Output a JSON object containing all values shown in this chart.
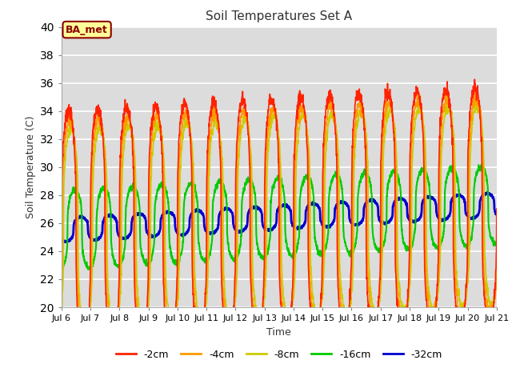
{
  "title": "Soil Temperatures Set A",
  "xlabel": "Time",
  "ylabel": "Soil Temperature (C)",
  "ylim": [
    20,
    40
  ],
  "x_tick_labels": [
    "Jul 6",
    "Jul 7",
    "Jul 8",
    "Jul 9",
    "Jul 10",
    "Jul 11",
    "Jul 12",
    "Jul 13",
    "Jul 14",
    "Jul 15",
    "Jul 16",
    "Jul 17",
    "Jul 18",
    "Jul 19",
    "Jul 20",
    "Jul 21"
  ],
  "annotation_text": "BA_met",
  "annotation_color": "#8B0000",
  "annotation_bg": "#FFFF99",
  "bg_color": "#DCDCDC",
  "series_colors": [
    "#FF2200",
    "#FF9900",
    "#CCCC00",
    "#00CC00",
    "#0000CC"
  ],
  "series_labels": [
    "-2cm",
    "-4cm",
    "-8cm",
    "-16cm",
    "-32cm"
  ],
  "series_linewidths": [
    1.2,
    1.2,
    1.2,
    1.5,
    2.0
  ],
  "n_days": 15,
  "points_per_day": 144,
  "base_temp": 25.5,
  "trend_slope": 0.12,
  "amplitudes": [
    8.5,
    7.8,
    7.2,
    2.8,
    0.85
  ],
  "phase_lags_hours": [
    0.0,
    0.8,
    1.8,
    5.0,
    10.0
  ],
  "sharpness": 3.0,
  "noise_scales": [
    0.25,
    0.25,
    0.2,
    0.1,
    0.04
  ]
}
